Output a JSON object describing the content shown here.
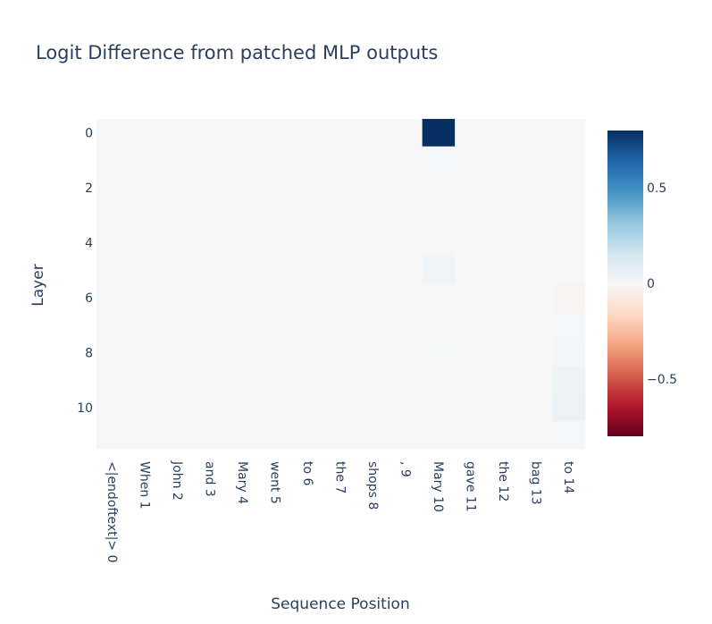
{
  "chart_data": {
    "type": "heatmap",
    "title": "Logit Difference from patched MLP outputs",
    "xlabel": "Sequence Position",
    "ylabel": "Layer",
    "x_categories": [
      "<|endoftext|> 0",
      "When 1",
      "John 2",
      "and 3",
      "Mary 4",
      "went 5",
      "to 6",
      "the 7",
      "shops 8",
      ", 9",
      "Mary 10",
      "gave 11",
      "the 12",
      "bag 13",
      "to 14"
    ],
    "y_categories": [
      0,
      1,
      2,
      3,
      4,
      5,
      6,
      7,
      8,
      9,
      10,
      11
    ],
    "y_tick_labels": [
      "0",
      "2",
      "4",
      "6",
      "8",
      "10"
    ],
    "colorscale": "RdBu",
    "zrange": [
      -0.8,
      0.8
    ],
    "colorbar_ticks": [
      {
        "value": 0.5,
        "label": "0.5"
      },
      {
        "value": 0,
        "label": "0"
      },
      {
        "value": -0.5,
        "label": "−0.5"
      }
    ],
    "z": [
      [
        0,
        0,
        0,
        0,
        0,
        0,
        0,
        0,
        0,
        0,
        0.8,
        0,
        0,
        0,
        0
      ],
      [
        0,
        0,
        0,
        0,
        0,
        0,
        0,
        0,
        0,
        0,
        0.01,
        0,
        0,
        0,
        0
      ],
      [
        0,
        0,
        0,
        0,
        0,
        0,
        0,
        0,
        0,
        0,
        0.005,
        0,
        0,
        0,
        0
      ],
      [
        0,
        0,
        0,
        0,
        0,
        0,
        0,
        0,
        0,
        0,
        0.005,
        0,
        0,
        0,
        0
      ],
      [
        0,
        0,
        0,
        0,
        0,
        0,
        0,
        0,
        0,
        0,
        0.005,
        0,
        0,
        0,
        0
      ],
      [
        0,
        0,
        0,
        0,
        0,
        0,
        0,
        0,
        0,
        0,
        0.03,
        0,
        0,
        0,
        0
      ],
      [
        0,
        0,
        0,
        0,
        0,
        0,
        0,
        0,
        0,
        0,
        -0.005,
        0,
        0,
        0,
        -0.01
      ],
      [
        0,
        0,
        0,
        0,
        0,
        0,
        0,
        0,
        0,
        0,
        -0.003,
        0,
        0,
        0,
        0.01
      ],
      [
        0,
        0,
        0,
        0,
        0,
        0,
        0,
        0,
        0,
        0,
        0.003,
        0,
        0,
        0,
        0.015
      ],
      [
        0,
        0,
        0,
        0,
        0,
        0,
        0,
        0,
        0,
        0,
        0,
        0,
        0,
        0,
        0.04
      ],
      [
        0,
        0,
        0,
        0,
        0,
        0,
        0,
        0,
        0,
        0,
        0,
        0,
        0,
        0,
        0.05
      ],
      [
        0,
        0,
        0,
        0,
        0,
        0,
        0,
        0,
        0,
        0,
        0,
        0,
        0,
        0,
        0.01
      ]
    ]
  }
}
